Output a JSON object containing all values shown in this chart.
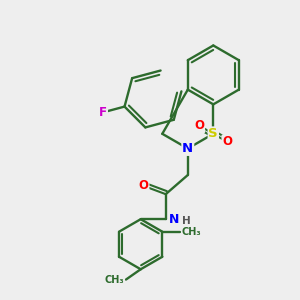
{
  "background_color": "#eeeeee",
  "bond_color": "#2d6b2d",
  "atom_colors": {
    "F": "#cc00cc",
    "N": "#0000ff",
    "S": "#cccc00",
    "O": "#ff0000",
    "C": "#2d6b2d",
    "H": "#555555"
  },
  "figsize": [
    3.0,
    3.0
  ],
  "dpi": 100
}
